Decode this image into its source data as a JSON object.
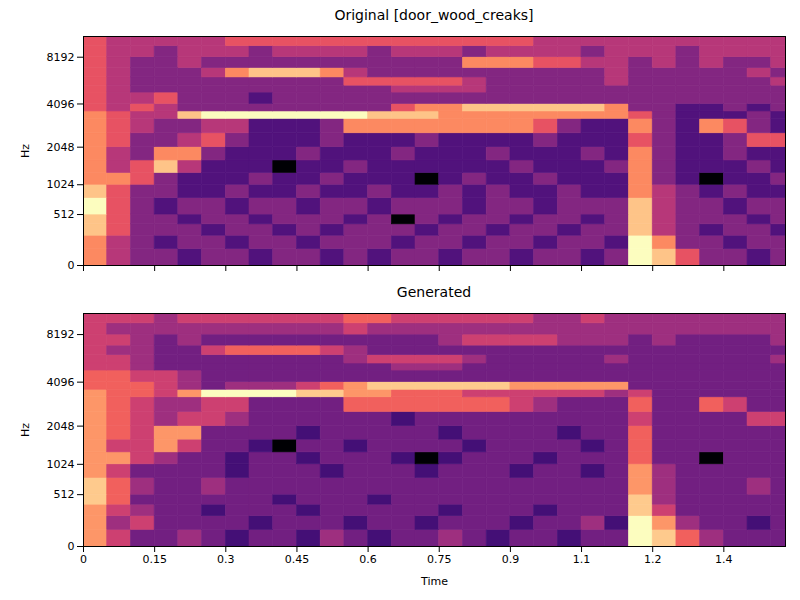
{
  "chart_data": [
    {
      "type": "heatmap",
      "title": "Original [door_wood_creaks]",
      "y_label": "Hz",
      "color": "magma",
      "log": "y",
      "tick_labels": "y",
      "xlim": [
        0,
        1.48
      ],
      "ylim": [
        0,
        11025
      ],
      "xticks": [
        0,
        0.15,
        0.3,
        0.45,
        0.6,
        0.75,
        0.9,
        {
          "value": 1.05,
          "label": "1.1"
        },
        1.2,
        {
          "value": 1.35,
          "label": "1.4"
        }
      ],
      "yticks": [
        0,
        512,
        1024,
        2048,
        4096,
        8192
      ],
      "x_bins": [
        0,
        0.05,
        0.1,
        0.15,
        0.2,
        0.25,
        0.3,
        0.35,
        0.4,
        0.45,
        0.5,
        0.55,
        0.6,
        0.65,
        0.7,
        0.75,
        0.8,
        0.85,
        0.9,
        0.95,
        1.0,
        1.05,
        1.1,
        1.15,
        1.2,
        1.25,
        1.3,
        1.35,
        1.4,
        1.45,
        1.5
      ],
      "y_bins": [
        0,
        128,
        256,
        384,
        512,
        768,
        1024,
        1290,
        1625,
        2048,
        2580,
        3250,
        3650,
        4096,
        4870,
        5400,
        6100,
        7000,
        8192,
        9600,
        11025
      ],
      "cells": [
        [
          6,
          4,
          3,
          3,
          2,
          3,
          3,
          2,
          3,
          3,
          2,
          3,
          2,
          3,
          3,
          2,
          3,
          3,
          2,
          3,
          3,
          2,
          3,
          8,
          7,
          5,
          3,
          3,
          2,
          3
        ],
        [
          6,
          4,
          3,
          2,
          3,
          3,
          2,
          3,
          3,
          2,
          3,
          3,
          3,
          2,
          3,
          3,
          2,
          3,
          3,
          2,
          3,
          3,
          2,
          8,
          6,
          3,
          3,
          2,
          3,
          3
        ],
        [
          7,
          5,
          3,
          3,
          3,
          2,
          3,
          3,
          2,
          3,
          2,
          3,
          3,
          3,
          2,
          3,
          3,
          2,
          3,
          3,
          2,
          3,
          3,
          7,
          4,
          3,
          2,
          3,
          3,
          2
        ],
        [
          7,
          5,
          3,
          3,
          2,
          3,
          3,
          2,
          3,
          3,
          3,
          2,
          3,
          0,
          3,
          2,
          3,
          3,
          2,
          3,
          3,
          2,
          3,
          7,
          4,
          3,
          3,
          3,
          2,
          3
        ],
        [
          8,
          5,
          3,
          2,
          3,
          3,
          2,
          3,
          3,
          2,
          3,
          3,
          2,
          3,
          3,
          3,
          2,
          3,
          3,
          2,
          3,
          3,
          3,
          7,
          4,
          3,
          3,
          2,
          3,
          3
        ],
        [
          7,
          5,
          3,
          3,
          2,
          2,
          3,
          2,
          2,
          3,
          2,
          2,
          3,
          2,
          2,
          3,
          2,
          3,
          2,
          2,
          3,
          2,
          2,
          6,
          4,
          3,
          2,
          3,
          2,
          2
        ],
        [
          6,
          6,
          5,
          3,
          2,
          2,
          2,
          3,
          2,
          2,
          3,
          2,
          2,
          2,
          0,
          2,
          3,
          2,
          2,
          3,
          2,
          2,
          2,
          6,
          3,
          2,
          0,
          2,
          2,
          3
        ],
        [
          6,
          4,
          5,
          7,
          4,
          2,
          2,
          2,
          0,
          2,
          2,
          3,
          2,
          2,
          2,
          2,
          2,
          2,
          3,
          2,
          2,
          2,
          3,
          6,
          3,
          2,
          2,
          2,
          3,
          2
        ],
        [
          6,
          4,
          3,
          6,
          6,
          3,
          2,
          2,
          2,
          3,
          2,
          2,
          2,
          3,
          2,
          2,
          2,
          3,
          2,
          2,
          2,
          3,
          2,
          6,
          3,
          2,
          2,
          3,
          2,
          2
        ],
        [
          6,
          5,
          3,
          3,
          4,
          5,
          3,
          2,
          2,
          2,
          3,
          2,
          2,
          2,
          3,
          2,
          2,
          2,
          2,
          3,
          2,
          2,
          2,
          5,
          3,
          2,
          2,
          3,
          5,
          5
        ],
        [
          6,
          5,
          4,
          3,
          3,
          4,
          4,
          2,
          2,
          2,
          3,
          6,
          6,
          6,
          6,
          6,
          6,
          6,
          6,
          5,
          3,
          2,
          2,
          6,
          3,
          2,
          6,
          5,
          3,
          2
        ],
        [
          6,
          5,
          4,
          4,
          7,
          8,
          8,
          8,
          8,
          8,
          8,
          8,
          7,
          7,
          7,
          6,
          6,
          6,
          6,
          6,
          6,
          6,
          6,
          5,
          3,
          2,
          2,
          2,
          3,
          2
        ],
        [
          5,
          4,
          5,
          4,
          3,
          3,
          3,
          3,
          3,
          3,
          3,
          3,
          3,
          5,
          6,
          6,
          7,
          7,
          7,
          7,
          7,
          7,
          6,
          3,
          3,
          2,
          2,
          3,
          2,
          3
        ],
        [
          5,
          4,
          4,
          5,
          3,
          3,
          3,
          2,
          3,
          3,
          3,
          3,
          3,
          3,
          3,
          3,
          3,
          3,
          3,
          3,
          3,
          3,
          3,
          3,
          3,
          3,
          3,
          3,
          3,
          3
        ],
        [
          5,
          4,
          3,
          3,
          3,
          3,
          3,
          3,
          3,
          3,
          3,
          3,
          3,
          4,
          4,
          4,
          4,
          3,
          3,
          3,
          3,
          3,
          3,
          3,
          3,
          3,
          3,
          3,
          3,
          3
        ],
        [
          5,
          4,
          3,
          3,
          3,
          3,
          3,
          3,
          3,
          3,
          3,
          5,
          5,
          5,
          5,
          5,
          4,
          3,
          3,
          3,
          3,
          3,
          4,
          3,
          3,
          3,
          3,
          3,
          3,
          4
        ],
        [
          5,
          4,
          3,
          3,
          3,
          4,
          6,
          7,
          7,
          7,
          6,
          4,
          3,
          3,
          3,
          3,
          3,
          3,
          3,
          3,
          3,
          3,
          4,
          3,
          3,
          3,
          3,
          3,
          4,
          3
        ],
        [
          5,
          4,
          3,
          3,
          4,
          3,
          3,
          3,
          3,
          3,
          3,
          3,
          3,
          3,
          3,
          3,
          6,
          6,
          6,
          5,
          5,
          4,
          4,
          3,
          4,
          3,
          4,
          3,
          3,
          4
        ],
        [
          5,
          4,
          4,
          3,
          4,
          4,
          4,
          3,
          4,
          4,
          4,
          4,
          3,
          4,
          4,
          4,
          3,
          4,
          4,
          4,
          4,
          3,
          4,
          4,
          4,
          3,
          4,
          4,
          4,
          4
        ],
        [
          5,
          4,
          4,
          4,
          4,
          4,
          5,
          5,
          5,
          5,
          5,
          5,
          5,
          5,
          5,
          5,
          5,
          5,
          5,
          4,
          4,
          4,
          4,
          4,
          4,
          4,
          4,
          4,
          4,
          4
        ]
      ]
    },
    {
      "type": "heatmap",
      "title": "Generated",
      "x_label": "Time",
      "y_label": "Hz",
      "color": "magma",
      "log": "y",
      "xlim": [
        0,
        1.48
      ],
      "ylim": [
        0,
        11025
      ],
      "xticks": [
        0,
        0.15,
        0.3,
        0.45,
        0.6,
        0.75,
        0.9,
        {
          "value": 1.05,
          "label": "1.1"
        },
        1.2,
        {
          "value": 1.35,
          "label": "1.4"
        }
      ],
      "yticks": [
        0,
        512,
        1024,
        2048,
        4096,
        8192
      ],
      "x_bins": [
        0,
        0.05,
        0.1,
        0.15,
        0.2,
        0.25,
        0.3,
        0.35,
        0.4,
        0.45,
        0.5,
        0.55,
        0.6,
        0.65,
        0.7,
        0.75,
        0.8,
        0.85,
        0.9,
        0.95,
        1.0,
        1.05,
        1.1,
        1.15,
        1.2,
        1.25,
        1.3,
        1.35,
        1.4,
        1.45,
        1.5
      ],
      "y_bins": [
        0,
        128,
        256,
        384,
        512,
        768,
        1024,
        1290,
        1625,
        2048,
        2580,
        3250,
        3650,
        4096,
        4870,
        5400,
        6100,
        7000,
        8192,
        9600,
        11025
      ],
      "cells": [
        [
          7,
          5,
          3,
          3,
          4,
          3,
          2,
          3,
          3,
          2,
          4,
          3,
          2,
          3,
          3,
          4,
          3,
          2,
          3,
          3,
          2,
          3,
          3,
          9,
          8,
          6,
          4,
          3,
          3,
          3
        ],
        [
          7,
          4,
          5,
          3,
          3,
          3,
          3,
          2,
          3,
          3,
          3,
          2,
          3,
          3,
          2,
          3,
          3,
          3,
          2,
          3,
          3,
          4,
          2,
          9,
          7,
          4,
          3,
          3,
          2,
          3
        ],
        [
          7,
          5,
          4,
          3,
          3,
          2,
          3,
          3,
          3,
          2,
          3,
          3,
          3,
          3,
          3,
          2,
          3,
          3,
          3,
          2,
          3,
          3,
          3,
          8,
          5,
          3,
          3,
          3,
          3,
          3
        ],
        [
          8,
          6,
          3,
          3,
          3,
          3,
          3,
          3,
          2,
          3,
          3,
          3,
          2,
          3,
          3,
          3,
          3,
          3,
          3,
          3,
          3,
          3,
          3,
          8,
          4,
          3,
          3,
          3,
          3,
          3
        ],
        [
          8,
          6,
          4,
          3,
          3,
          4,
          3,
          3,
          3,
          3,
          3,
          3,
          3,
          3,
          3,
          3,
          3,
          3,
          3,
          3,
          3,
          3,
          3,
          7,
          4,
          3,
          3,
          3,
          4,
          3
        ],
        [
          7,
          5,
          3,
          3,
          3,
          3,
          2,
          3,
          3,
          3,
          2,
          3,
          3,
          3,
          2,
          3,
          3,
          3,
          2,
          3,
          3,
          2,
          3,
          7,
          4,
          3,
          3,
          3,
          3,
          3
        ],
        [
          7,
          7,
          5,
          4,
          3,
          3,
          2,
          3,
          3,
          2,
          3,
          3,
          3,
          2,
          0,
          2,
          3,
          3,
          3,
          2,
          3,
          3,
          3,
          6,
          3,
          3,
          0,
          3,
          3,
          3
        ],
        [
          7,
          5,
          5,
          7,
          5,
          3,
          3,
          2,
          0,
          3,
          3,
          2,
          3,
          3,
          3,
          3,
          2,
          3,
          3,
          3,
          3,
          2,
          3,
          6,
          3,
          3,
          3,
          3,
          3,
          3
        ],
        [
          7,
          6,
          5,
          7,
          7,
          3,
          3,
          3,
          3,
          2,
          3,
          3,
          3,
          3,
          3,
          2,
          3,
          3,
          3,
          3,
          2,
          3,
          3,
          6,
          3,
          3,
          3,
          3,
          3,
          3
        ],
        [
          7,
          6,
          5,
          4,
          5,
          5,
          4,
          3,
          3,
          3,
          3,
          3,
          3,
          2,
          3,
          3,
          3,
          3,
          3,
          3,
          3,
          3,
          3,
          5,
          3,
          3,
          3,
          3,
          5,
          5
        ],
        [
          7,
          6,
          5,
          4,
          4,
          5,
          5,
          3,
          3,
          3,
          3,
          6,
          6,
          6,
          6,
          6,
          6,
          6,
          5,
          4,
          3,
          3,
          3,
          6,
          3,
          3,
          6,
          5,
          3,
          3
        ],
        [
          7,
          6,
          6,
          5,
          7,
          9,
          9,
          9,
          9,
          8,
          8,
          7,
          7,
          6,
          6,
          6,
          5,
          5,
          5,
          5,
          5,
          5,
          4,
          5,
          3,
          3,
          3,
          3,
          3,
          3
        ],
        [
          6,
          6,
          6,
          5,
          4,
          3,
          4,
          4,
          4,
          5,
          6,
          7,
          8,
          8,
          8,
          8,
          8,
          8,
          7,
          7,
          7,
          7,
          7,
          3,
          3,
          3,
          3,
          3,
          3,
          3
        ],
        [
          6,
          6,
          5,
          5,
          4,
          3,
          3,
          3,
          3,
          3,
          3,
          3,
          3,
          3,
          3,
          3,
          3,
          3,
          3,
          3,
          3,
          3,
          3,
          3,
          3,
          3,
          3,
          3,
          3,
          3
        ],
        [
          5,
          5,
          4,
          3,
          3,
          3,
          3,
          3,
          3,
          3,
          3,
          3,
          3,
          4,
          4,
          4,
          3,
          3,
          3,
          3,
          3,
          3,
          3,
          3,
          3,
          3,
          3,
          3,
          3,
          3
        ],
        [
          5,
          5,
          4,
          3,
          3,
          3,
          3,
          3,
          3,
          3,
          3,
          4,
          5,
          5,
          5,
          5,
          4,
          3,
          3,
          3,
          3,
          3,
          4,
          3,
          3,
          3,
          3,
          3,
          3,
          4
        ],
        [
          5,
          4,
          4,
          3,
          3,
          5,
          6,
          6,
          6,
          6,
          5,
          4,
          3,
          3,
          3,
          3,
          3,
          3,
          3,
          3,
          3,
          3,
          3,
          3,
          3,
          3,
          3,
          3,
          3,
          3
        ],
        [
          5,
          5,
          4,
          3,
          4,
          3,
          3,
          3,
          3,
          3,
          3,
          3,
          3,
          3,
          3,
          4,
          5,
          5,
          5,
          5,
          4,
          4,
          4,
          3,
          4,
          3,
          3,
          3,
          3,
          4
        ],
        [
          5,
          4,
          4,
          4,
          4,
          4,
          4,
          4,
          4,
          4,
          4,
          5,
          4,
          4,
          4,
          4,
          4,
          4,
          4,
          4,
          4,
          4,
          4,
          4,
          4,
          4,
          4,
          4,
          4,
          4
        ],
        [
          5,
          5,
          5,
          4,
          5,
          5,
          5,
          5,
          5,
          5,
          5,
          6,
          6,
          5,
          5,
          5,
          5,
          5,
          5,
          4,
          4,
          5,
          4,
          4,
          4,
          4,
          4,
          4,
          4,
          4
        ]
      ]
    }
  ]
}
